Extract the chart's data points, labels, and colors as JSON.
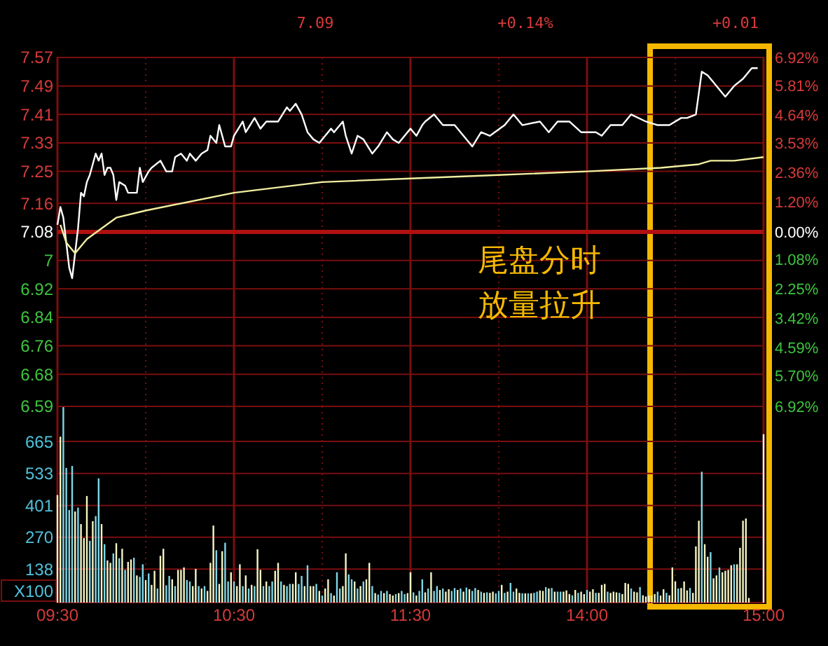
{
  "chart_data": [
    {
      "type": "line",
      "annotations": [
        "7.09",
        "+0.14%",
        "+0.01",
        "尾盘分时放量拉升"
      ],
      "categories": [
        null,
        null,
        null,
        null,
        null,
        null,
        null,
        null,
        null,
        null,
        null,
        null,
        null,
        null,
        null,
        null,
        null,
        null,
        null,
        null,
        null,
        null,
        null,
        null,
        null,
        null,
        null,
        null,
        null,
        null,
        null,
        null,
        null,
        null,
        null,
        null,
        null,
        null,
        null,
        null,
        null,
        null,
        null,
        null,
        null,
        null,
        null,
        null,
        null,
        null,
        null,
        null,
        null,
        null,
        null,
        null,
        null,
        null,
        null,
        null,
        null,
        null,
        null,
        null,
        null,
        null,
        null,
        null,
        null,
        null,
        null,
        null,
        null,
        null,
        null,
        null,
        null,
        null,
        null,
        null,
        null,
        null,
        null,
        null,
        null,
        null,
        null,
        null,
        null,
        null,
        null,
        null,
        null,
        null,
        null,
        null,
        null,
        null,
        null,
        null,
        null,
        null,
        null,
        null,
        null,
        null,
        null,
        null,
        null,
        null,
        null,
        null,
        null,
        null,
        null,
        null,
        null,
        null,
        null,
        null,
        null,
        null,
        null,
        null,
        null,
        null,
        null,
        null,
        null,
        null,
        null,
        null,
        null,
        null,
        null,
        null,
        null,
        null,
        null,
        null,
        null,
        null,
        null,
        null,
        null,
        null,
        null,
        null,
        null,
        null,
        null,
        null,
        null,
        null,
        null,
        null,
        null,
        null,
        null,
        null,
        null,
        null,
        null,
        null,
        null,
        null,
        null,
        null,
        null,
        null,
        null,
        null,
        null,
        null,
        null,
        null,
        null,
        null,
        null,
        null,
        null,
        null,
        null,
        null,
        null,
        null,
        null,
        null,
        null,
        null,
        null,
        null,
        null,
        null,
        null,
        null,
        null,
        null,
        null,
        null,
        null,
        null,
        null,
        null,
        null,
        null,
        null,
        null,
        null,
        null,
        null,
        null,
        null,
        null,
        null,
        null,
        null,
        null,
        null,
        null,
        null,
        null,
        null,
        null,
        null,
        null,
        null,
        null,
        null,
        null,
        null,
        null,
        null,
        null,
        null,
        null,
        null,
        null,
        null,
        null,
        null
      ],
      "series": [
        {
          "color": "#ffffff",
          "values": [
            7.1,
            7.15,
            7.12,
            7.05,
            6.98,
            6.95,
            7.02,
            7.09,
            7.19,
            7.18,
            7.22,
            7.24,
            null,
            7.3,
            7.28,
            7.3,
            7.24,
            7.26,
            7.26,
            7.24,
            7.17,
            7.22,
            null,
            7.21,
            7.19,
            null,
            null,
            7.19,
            7.26,
            7.22,
            null,
            7.25,
            7.26,
            null,
            null,
            7.28,
            null,
            7.25,
            null,
            7.25,
            7.29,
            null,
            7.3,
            null,
            7.28,
            7.3,
            null,
            7.28,
            null,
            7.3,
            null,
            7.31,
            7.35,
            null,
            7.33,
            7.38,
            null,
            7.32,
            null,
            7.32,
            7.35,
            null,
            null,
            7.39,
            7.36,
            null,
            null,
            7.4,
            null,
            7.37,
            null,
            7.39,
            null,
            null,
            null,
            7.39,
            null,
            null,
            7.43,
            7.42,
            null,
            7.44,
            null,
            7.41,
            null,
            7.36,
            null,
            7.34,
            null,
            7.33,
            null,
            7.35,
            null,
            7.37,
            7.36,
            null,
            null,
            7.39,
            7.35,
            null,
            7.3,
            null,
            7.35,
            null,
            7.34,
            null,
            null,
            7.3,
            null,
            7.32,
            null,
            null,
            7.36,
            null,
            7.34,
            null,
            7.33,
            null,
            7.35,
            null,
            7.37,
            null,
            7.35,
            null,
            7.38,
            7.39,
            null,
            null,
            7.41,
            null,
            null,
            7.38,
            null,
            null,
            null,
            7.38,
            null,
            null,
            7.35,
            null,
            null,
            7.32,
            null,
            null,
            7.36,
            null,
            null,
            7.35,
            null,
            null,
            null,
            null,
            7.38,
            null,
            null,
            7.41,
            null,
            null,
            7.38,
            null,
            null,
            null,
            null,
            null,
            7.39,
            null,
            null,
            7.36,
            null,
            null,
            7.39,
            null,
            null,
            null,
            7.39,
            null,
            null,
            null,
            7.36,
            null,
            null,
            null,
            null,
            7.36,
            null,
            7.35,
            null,
            null,
            7.38,
            null,
            null,
            null,
            7.38,
            null,
            null,
            7.41,
            null,
            null,
            null,
            null,
            7.39,
            null,
            null,
            null,
            7.38,
            null,
            null,
            null,
            7.38,
            null,
            null,
            null,
            7.4,
            null,
            7.4,
            null,
            null,
            7.41,
            null,
            7.53,
            null,
            7.52,
            null,
            null,
            7.49,
            null,
            null,
            7.46,
            null,
            null,
            7.49,
            null,
            null,
            7.51,
            null,
            null,
            7.54,
            null,
            7.54,
            null,
            null
          ]
        },
        {
          "color": "#f2eea0",
          "values": [
            null,
            7.1,
            null,
            7.05,
            null,
            null,
            7.02,
            null,
            null,
            null,
            7.06,
            null,
            null,
            null,
            null,
            null,
            null,
            null,
            null,
            null,
            7.12,
            null,
            null,
            null,
            null,
            null,
            null,
            null,
            null,
            null,
            7.14,
            null,
            null,
            null,
            null,
            null,
            null,
            null,
            null,
            null,
            null,
            null,
            null,
            null,
            null,
            null,
            null,
            null,
            null,
            null,
            null,
            null,
            null,
            null,
            null,
            null,
            null,
            null,
            null,
            null,
            7.19,
            null,
            null,
            null,
            null,
            null,
            null,
            null,
            null,
            null,
            null,
            null,
            null,
            null,
            null,
            null,
            null,
            null,
            null,
            null,
            null,
            null,
            null,
            null,
            null,
            null,
            null,
            null,
            null,
            null,
            7.22,
            null,
            null,
            null,
            null,
            null,
            null,
            null,
            null,
            null,
            null,
            null,
            null,
            null,
            null,
            null,
            null,
            null,
            null,
            null,
            null,
            null,
            null,
            null,
            null,
            null,
            null,
            null,
            null,
            null,
            7.23,
            null,
            null,
            null,
            null,
            null,
            null,
            null,
            null,
            null,
            null,
            null,
            null,
            null,
            null,
            null,
            null,
            null,
            null,
            null,
            null,
            null,
            null,
            null,
            null,
            null,
            null,
            null,
            null,
            null,
            7.24,
            null,
            null,
            null,
            null,
            null,
            null,
            null,
            null,
            null,
            null,
            null,
            null,
            null,
            null,
            null,
            null,
            null,
            null,
            null,
            null,
            null,
            null,
            null,
            null,
            null,
            null,
            null,
            null,
            null,
            7.25,
            null,
            null,
            null,
            null,
            null,
            null,
            null,
            null,
            null,
            null,
            null,
            null,
            null,
            null,
            null,
            null,
            null,
            null,
            null,
            null,
            null,
            null,
            null,
            null,
            7.26,
            null,
            null,
            null,
            null,
            null,
            null,
            null,
            null,
            null,
            null,
            null,
            null,
            7.27,
            null,
            null,
            null,
            7.28,
            null,
            null,
            null,
            null,
            null,
            null,
            null,
            7.28,
            null,
            null,
            null,
            null,
            null,
            null,
            null,
            null,
            null,
            7.29
          ]
        }
      ],
      "ylim": [
        6.59,
        7.57
      ],
      "yticks": [
        7.57,
        7.49,
        7.41,
        7.33,
        7.25,
        7.16,
        7.08,
        7.0,
        6.92,
        6.84,
        6.76,
        6.68,
        6.59
      ],
      "y2lim": [
        -6.92,
        6.92
      ],
      "y2ticks": [
        {
          "value": 6.92,
          "label": "6.92%"
        },
        {
          "value": 5.81,
          "label": "5.81%"
        },
        {
          "value": 4.64,
          "label": "4.64%"
        },
        {
          "value": 3.53,
          "label": "3.53%"
        },
        {
          "value": 2.36,
          "label": "2.36%"
        },
        {
          "value": 1.2,
          "label": "1.20%"
        },
        {
          "value": 0,
          "label": "0.00%"
        },
        {
          "value": -1.08,
          "label": "1.08%"
        },
        {
          "value": -2.25,
          "label": "2.25%"
        },
        {
          "value": -3.42,
          "label": "3.42%"
        },
        {
          "value": -4.59,
          "label": "4.59%"
        },
        {
          "value": -5.7,
          "label": "5.70%"
        },
        {
          "value": -6.92,
          "label": "6.92%"
        }
      ],
      "ref_lines": [
        {
          "axis": "y",
          "value": 7.08,
          "color": "#b01010"
        }
      ],
      "tick_labels": "y",
      "grid": true
    },
    {
      "type": "bar",
      "ylabel": "X100",
      "categories": [
        "09:30",
        null,
        null,
        null,
        null,
        null,
        null,
        null,
        null,
        null,
        null,
        null,
        null,
        null,
        null,
        null,
        null,
        null,
        null,
        null,
        null,
        null,
        null,
        null,
        null,
        null,
        null,
        null,
        null,
        null,
        null,
        null,
        null,
        null,
        null,
        null,
        null,
        null,
        null,
        null,
        null,
        null,
        null,
        null,
        null,
        null,
        null,
        null,
        null,
        null,
        null,
        null,
        null,
        null,
        null,
        null,
        null,
        null,
        null,
        null,
        "10:30",
        null,
        null,
        null,
        null,
        null,
        null,
        null,
        null,
        null,
        null,
        null,
        null,
        null,
        null,
        null,
        null,
        null,
        null,
        null,
        null,
        null,
        null,
        null,
        null,
        null,
        null,
        null,
        null,
        null,
        null,
        null,
        null,
        null,
        null,
        null,
        null,
        null,
        null,
        null,
        null,
        null,
        null,
        null,
        null,
        null,
        null,
        null,
        null,
        null,
        null,
        null,
        null,
        null,
        null,
        null,
        null,
        null,
        null,
        null,
        "11:30",
        null,
        null,
        null,
        null,
        null,
        null,
        null,
        null,
        null,
        null,
        null,
        null,
        null,
        null,
        null,
        null,
        null,
        null,
        null,
        null,
        null,
        null,
        null,
        null,
        null,
        null,
        null,
        null,
        null,
        null,
        null,
        null,
        null,
        null,
        null,
        null,
        null,
        null,
        null,
        null,
        null,
        null,
        null,
        null,
        null,
        null,
        null,
        null,
        null,
        null,
        null,
        null,
        null,
        null,
        null,
        null,
        null,
        null,
        null,
        "14:00",
        null,
        null,
        null,
        null,
        null,
        null,
        null,
        null,
        null,
        null,
        null,
        null,
        null,
        null,
        null,
        null,
        null,
        null,
        null,
        null,
        null,
        null,
        null,
        null,
        null,
        null,
        null,
        null,
        null,
        null,
        null,
        null,
        null,
        null,
        null,
        null,
        null,
        null,
        null,
        null,
        null,
        null,
        null,
        null,
        null,
        null,
        null,
        null,
        null,
        null,
        null,
        null,
        null,
        null,
        null,
        null,
        null,
        null,
        null,
        "15:00"
      ],
      "values": [
        444,
        685,
        807,
        556,
        382,
        564,
        376,
        392,
        324,
        266,
        440,
        255,
        336,
        357,
        513,
        324,
        241,
        174,
        164,
        203,
        245,
        183,
        222,
        135,
        168,
        178,
        185,
        112,
        106,
        158,
        93,
        120,
        73,
        131,
        58,
        193,
        222,
        71,
        110,
        96,
        68,
        135,
        135,
        145,
        93,
        87,
        68,
        139,
        68,
        58,
        68,
        48,
        164,
        318,
        216,
        77,
        212,
        247,
        87,
        125,
        87,
        68,
        158,
        68,
        112,
        58,
        73,
        68,
        220,
        135,
        68,
        87,
        68,
        87,
        131,
        164,
        87,
        73,
        68,
        77,
        77,
        125,
        77,
        110,
        68,
        154,
        68,
        68,
        77,
        48,
        29,
        58,
        96,
        39,
        29,
        125,
        58,
        68,
        203,
        116,
        96,
        87,
        58,
        68,
        87,
        96,
        164,
        68,
        39,
        33,
        48,
        39,
        48,
        35,
        29,
        35,
        39,
        48,
        35,
        39,
        125,
        42,
        29,
        48,
        96,
        42,
        58,
        125,
        48,
        68,
        52,
        58,
        45,
        55,
        48,
        60,
        52,
        58,
        45,
        62,
        55,
        48,
        60,
        52,
        45,
        40,
        42,
        40,
        45,
        38,
        48,
        73,
        40,
        45,
        81,
        45,
        58,
        40,
        38,
        38,
        38,
        38,
        40,
        45,
        50,
        48,
        64,
        58,
        60,
        45,
        45,
        45,
        45,
        50,
        35,
        30,
        52,
        40,
        45,
        35,
        52,
        45,
        55,
        40,
        40,
        73,
        77,
        45,
        40,
        45,
        42,
        40,
        35,
        81,
        77,
        58,
        45,
        42,
        64,
        30,
        25,
        29,
        29,
        35,
        45,
        29,
        55,
        40,
        30,
        145,
        87,
        58,
        60,
        87,
        50,
        60,
        40,
        232,
        338,
        540,
        241,
        189,
        208,
        100,
        112,
        145,
        125,
        131,
        135,
        154,
        158,
        158,
        226,
        338,
        347,
        19,
        0,
        0,
        0,
        0,
        695
      ],
      "colors": [
        "#f4f4c4",
        "#f4f4c4",
        "#7fd6e6",
        "#7fd6e6",
        "#7fd6e6",
        "#7fd6e6",
        "#f4f4c4",
        "#7fd6e6",
        "#f4f4c4",
        "#f4f4c4",
        "#f4f4c4",
        "#7fd6e6",
        "#f4f4c4",
        "#7fd6e6",
        "#7fd6e6",
        "#f4f4c4",
        "#7fd6e6",
        "#f4f4c4",
        "#f4f4c4",
        "#7fd6e6",
        "#f4f4c4",
        "#7fd6e6",
        "#f4f4c4",
        "#7fd6e6",
        "#f4f4c4",
        "#f4f4c4",
        "#7fd6e6",
        "#f4f4c4",
        "#7fd6e6",
        "#7fd6e6",
        "#f4f4c4",
        "#7fd6e6",
        "#f4f4c4",
        "#f4f4c4",
        "#7fd6e6",
        "#f4f4c4",
        "#f4f4c4",
        "#7fd6e6",
        "#7fd6e6",
        "#f4f4c4",
        "#7fd6e6",
        "#f4f4c4",
        "#f4f4c4",
        "#f4f4c4",
        "#7fd6e6",
        "#7fd6e6",
        "#f4f4c4",
        "#f4f4c4",
        "#7fd6e6",
        "#f4f4c4",
        "#7fd6e6",
        "#f4f4c4",
        "#f4f4c4",
        "#f4f4c4",
        "#7fd6e6",
        "#f4f4c4",
        "#f4f4c4",
        "#7fd6e6",
        "#7fd6e6",
        "#f4f4c4",
        "#7fd6e6",
        "#f4f4c4",
        "#f4f4c4",
        "#7fd6e6",
        "#f4f4c4",
        "#7fd6e6",
        "#f4f4c4",
        "#7fd6e6",
        "#f4f4c4",
        "#f4f4c4",
        "#7fd6e6",
        "#f4f4c4",
        "#7fd6e6",
        "#7fd6e6",
        "#f4f4c4",
        "#f4f4c4",
        "#7fd6e6",
        "#f4f4c4",
        "#7fd6e6",
        "#7fd6e6",
        "#f4f4c4",
        "#f4f4c4",
        "#7fd6e6",
        "#7fd6e6",
        "#f4f4c4",
        "#7fd6e6",
        "#f4f4c4",
        "#f4f4c4",
        "#7fd6e6",
        "#f4f4c4",
        "#7fd6e6",
        "#f4f4c4",
        "#f4f4c4",
        "#7fd6e6",
        "#f4f4c4",
        "#7fd6e6",
        "#7fd6e6",
        "#f4f4c4",
        "#f4f4c4",
        "#7fd6e6",
        "#7fd6e6",
        "#f4f4c4",
        "#7fd6e6",
        "#f4f4c4",
        "#7fd6e6",
        "#f4f4c4",
        "#f4f4c4",
        "#7fd6e6",
        "#f4f4c4",
        "#7fd6e6",
        "#7fd6e6",
        "#f4f4c4",
        "#7fd6e6",
        "#f4f4c4",
        "#f4f4c4",
        "#7fd6e6",
        "#f4f4c4",
        "#7fd6e6",
        "#7fd6e6",
        "#f4f4c4",
        "#f4f4c4",
        "#7fd6e6",
        "#f4f4c4",
        "#7fd6e6",
        "#7fd6e6",
        "#f4f4c4",
        "#7fd6e6",
        "#f4f4c4",
        "#7fd6e6",
        "#7fd6e6",
        "#f4f4c4",
        "#7fd6e6",
        "#f4f4c4",
        "#f4f4c4",
        "#7fd6e6",
        "#7fd6e6",
        "#f4f4c4",
        "#7fd6e6",
        "#f4f4c4",
        "#7fd6e6",
        "#f4f4c4",
        "#7fd6e6",
        "#7fd6e6",
        "#f4f4c4",
        "#7fd6e6",
        "#f4f4c4",
        "#7fd6e6",
        "#f4f4c4",
        "#f4f4c4",
        "#7fd6e6",
        "#7fd6e6",
        "#f4f4c4",
        "#7fd6e6",
        "#f4f4c4",
        "#7fd6e6",
        "#7fd6e6",
        "#f4f4c4",
        "#f4f4c4",
        "#7fd6e6",
        "#f4f4c4",
        "#7fd6e6",
        "#f4f4c4",
        "#7fd6e6",
        "#7fd6e6",
        "#f4f4c4",
        "#f4f4c4",
        "#7fd6e6",
        "#f4f4c4",
        "#7fd6e6",
        "#f4f4c4",
        "#7fd6e6",
        "#7fd6e6",
        "#f4f4c4",
        "#f4f4c4",
        "#f4f4c4",
        "#7fd6e6",
        "#f4f4c4",
        "#7fd6e6",
        "#f4f4c4",
        "#f4f4c4",
        "#7fd6e6",
        "#f4f4c4",
        "#f4f4c4",
        "#7fd6e6",
        "#f4f4c4",
        "#f4f4c4",
        "#f4f4c4",
        "#7fd6e6",
        "#f4f4c4",
        "#f4f4c4",
        "#f4f4c4",
        "#7fd6e6",
        "#f4f4c4",
        "#f4f4c4",
        "#f4f4c4",
        "#7fd6e6",
        "#f4f4c4",
        "#f4f4c4",
        "#7fd6e6",
        "#f4f4c4",
        "#f4f4c4",
        "#f4f4c4",
        "#f4f4c4",
        "#f4f4c4",
        "#7fd6e6",
        "#f4f4c4",
        "#f4f4c4",
        "#7fd6e6",
        "#f4f4c4",
        "#f4f4c4",
        "#f4f4c4",
        "#7fd6e6",
        "#f4f4c4",
        "#f4f4c4",
        "#f4f4c4",
        "#7fd6e6",
        "#f4f4c4",
        "#f4f4c4",
        "#f4f4c4",
        "#7fd6e6",
        "#f4f4c4",
        "#f4f4c4",
        "#7fd6e6",
        "#f4f4c4",
        "#f4f4c4",
        "#7fd6e6",
        "#f4f4c4",
        "#f4f4c4",
        "#f4f4c4",
        "#f4f4c4",
        "#7fd6e6",
        "#f4f4c4",
        "#f4f4c4",
        "#f4f4c4",
        "#f4f4c4",
        "#f4f4c4",
        "#f4f4c4",
        "#f4f4c4",
        "#f4f4c4",
        "#ffffff",
        "#ffffff"
      ],
      "ylim": [
        0,
        810
      ],
      "yticks": [
        138,
        270,
        401,
        533,
        665
      ],
      "grid": true
    }
  ]
}
